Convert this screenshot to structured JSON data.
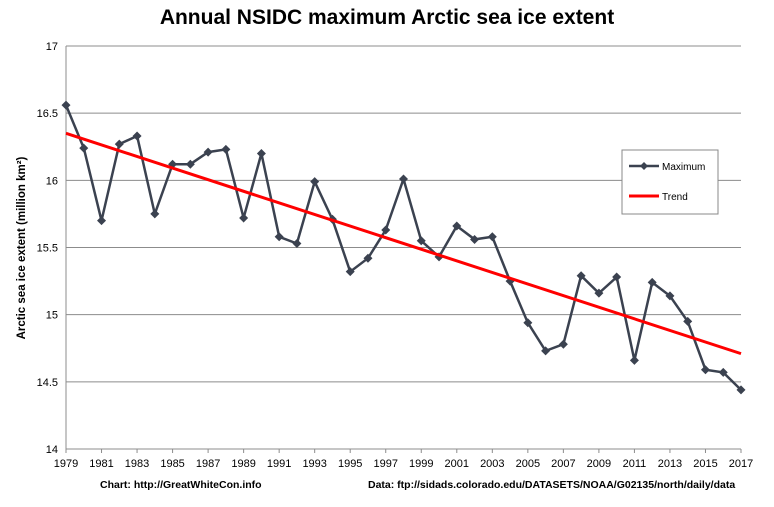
{
  "chart_data": {
    "type": "line",
    "title": "Annual NSIDC maximum Arctic sea ice extent",
    "xlabel": "",
    "ylabel": "Arctic sea ice extent (million km²)",
    "ylim": [
      14,
      17
    ],
    "yticks": [
      "14",
      "14.5",
      "15",
      "15.5",
      "16",
      "16.5",
      "17"
    ],
    "xlim": [
      1979,
      2017
    ],
    "xticks": [
      "1979",
      "1981",
      "1983",
      "1985",
      "1987",
      "1989",
      "1991",
      "1993",
      "1995",
      "1997",
      "1999",
      "2001",
      "2003",
      "2005",
      "2007",
      "2009",
      "2011",
      "2013",
      "2015",
      "2017"
    ],
    "grid": true,
    "legend_position": "right",
    "series": [
      {
        "name": "Maximum",
        "color": "#3b4250",
        "marker": "diamond",
        "x": [
          1979,
          1980,
          1981,
          1982,
          1983,
          1984,
          1985,
          1986,
          1987,
          1988,
          1989,
          1990,
          1991,
          1992,
          1993,
          1994,
          1995,
          1996,
          1997,
          1998,
          1999,
          2000,
          2001,
          2002,
          2003,
          2004,
          2005,
          2006,
          2007,
          2008,
          2009,
          2010,
          2011,
          2012,
          2013,
          2014,
          2015,
          2016,
          2017
        ],
        "values": [
          16.56,
          16.24,
          15.7,
          16.27,
          16.33,
          15.75,
          16.12,
          16.12,
          16.21,
          16.23,
          15.72,
          16.2,
          15.58,
          15.53,
          15.99,
          15.71,
          15.32,
          15.42,
          15.63,
          16.01,
          15.55,
          15.43,
          15.66,
          15.56,
          15.58,
          15.25,
          14.94,
          14.73,
          14.78,
          15.29,
          15.16,
          15.28,
          14.66,
          15.24,
          15.14,
          14.95,
          14.59,
          14.57,
          14.44
        ]
      },
      {
        "name": "Trend",
        "color": "#ff0000",
        "x": [
          1979,
          2017
        ],
        "values": [
          16.35,
          14.71
        ]
      }
    ],
    "legend": {
      "maximum_label": "Maximum",
      "trend_label": "Trend"
    }
  },
  "footer": {
    "credit": "Chart: http://GreatWhiteCon.info",
    "source": "Data: ftp://sidads.colorado.edu/DATASETS/NOAA/G02135/north/daily/data"
  }
}
